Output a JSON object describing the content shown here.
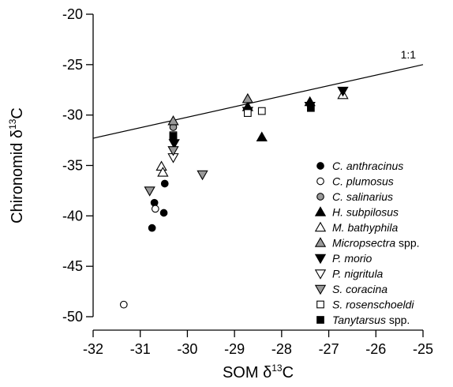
{
  "chart_data": {
    "type": "scatter",
    "x_axis": {
      "range": [
        -32,
        -25
      ],
      "ticks": [
        -32,
        -31,
        -30,
        -29,
        -28,
        -27,
        -26,
        -25
      ],
      "label_main": "SOM δ",
      "label_sup": "13",
      "label_end": "C"
    },
    "y_axis": {
      "range": [
        -50,
        -20
      ],
      "ticks": [
        -50,
        -45,
        -40,
        -35,
        -30,
        -25,
        -20
      ],
      "label_main": "Chironomid δ",
      "label_sup": "13",
      "label_end": "C"
    },
    "reference_line": {
      "label": "1:1",
      "points": [
        [
          -32,
          -32.3
        ],
        [
          -25,
          -25
        ]
      ]
    },
    "legend_position": "right",
    "series": [
      {
        "name": "C. anthracinus",
        "name_italic": "C. anthracinus",
        "name_plain": "",
        "marker": "circle",
        "fill": "#000000",
        "x": [
          -30.75,
          -30.7,
          -30.5,
          -30.48
        ],
        "y": [
          -41.2,
          -38.7,
          -39.7,
          -36.8
        ]
      },
      {
        "name": "C. plumosus",
        "name_italic": "C. plumosus",
        "name_plain": "",
        "marker": "circle",
        "fill": "#ffffff",
        "x": [
          -31.35,
          -30.68
        ],
        "y": [
          -48.8,
          -39.3
        ]
      },
      {
        "name": "C. salinarius",
        "name_italic": "C. salinarius",
        "name_plain": "",
        "marker": "circle",
        "fill": "#999999",
        "x": [
          -30.3
        ],
        "y": [
          -31.2
        ]
      },
      {
        "name": "H. subpilosus",
        "name_italic": "H. subpilosus",
        "name_plain": "",
        "marker": "triangle-up",
        "fill": "#000000",
        "x": [
          -28.72,
          -28.42,
          -27.4
        ],
        "y": [
          -29.2,
          -32.2,
          -28.7
        ]
      },
      {
        "name": "M. bathyphila",
        "name_italic": "M. bathyphila",
        "name_plain": "",
        "marker": "triangle-up",
        "fill": "#ffffff",
        "x": [
          -30.55,
          -30.52,
          -26.7
        ],
        "y": [
          -35.1,
          -35.7,
          -28.0
        ]
      },
      {
        "name": "Micropsectra spp.",
        "name_italic": "Micropsectra",
        "name_plain": " spp.",
        "marker": "triangle-up",
        "fill": "#999999",
        "x": [
          -30.3,
          -28.72
        ],
        "y": [
          -30.6,
          -28.4
        ]
      },
      {
        "name": "P. morio",
        "name_italic": "P. morio",
        "name_plain": "",
        "marker": "triangle-down",
        "fill": "#000000",
        "x": [
          -30.28,
          -28.72,
          -27.4,
          -26.7
        ],
        "y": [
          -32.8,
          -29.6,
          -29.1,
          -27.6
        ]
      },
      {
        "name": "P. nigritula",
        "name_italic": "P. nigritula",
        "name_plain": "",
        "marker": "triangle-down",
        "fill": "#ffffff",
        "x": [
          -30.3
        ],
        "y": [
          -34.2
        ]
      },
      {
        "name": "S. coracina",
        "name_italic": "S. coracina",
        "name_plain": "",
        "marker": "triangle-down",
        "fill": "#999999",
        "x": [
          -30.8,
          -30.3,
          -29.68
        ],
        "y": [
          -37.5,
          -33.5,
          -35.9
        ]
      },
      {
        "name": "S. rosenschoeldi",
        "name_italic": "S. rosenschoeldi",
        "name_plain": "",
        "marker": "square",
        "fill": "#ffffff",
        "x": [
          -30.3,
          -28.72,
          -28.42
        ],
        "y": [
          -32.0,
          -29.8,
          -29.6
        ]
      },
      {
        "name": "Tanytarsus spp.",
        "name_italic": "Tanytarsus",
        "name_plain": " spp.",
        "marker": "square",
        "fill": "#000000",
        "x": [
          -30.3,
          -27.38
        ],
        "y": [
          -32.1,
          -29.3
        ]
      }
    ]
  }
}
